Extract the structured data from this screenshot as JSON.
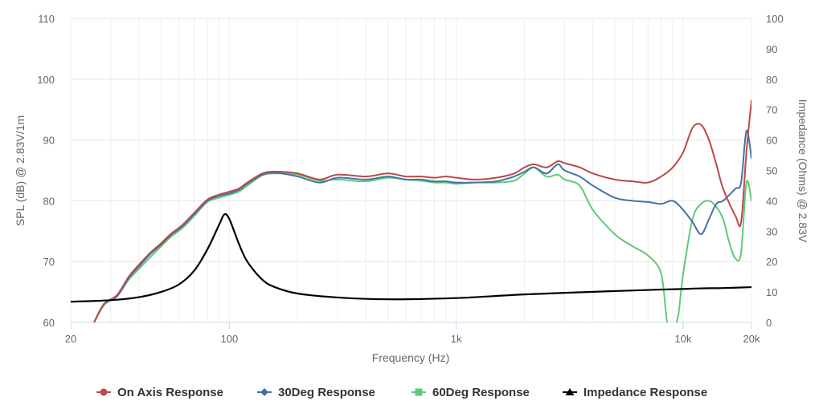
{
  "chart_data": {
    "type": "line",
    "xlabel": "Frequency (Hz)",
    "ylabel": "SPL (dB) @ 2.83V/1m",
    "y2label": "Impedance (Ohms) @ 2.83V",
    "x_scale": "log",
    "xlim": [
      20,
      20000
    ],
    "ylim": [
      60,
      110
    ],
    "y2lim": [
      0,
      100
    ],
    "x_ticks": [
      20,
      100,
      1000,
      10000,
      20000
    ],
    "x_tick_labels": [
      "20",
      "100",
      "1k",
      "10k",
      "20k"
    ],
    "y_ticks": [
      60,
      70,
      80,
      90,
      100,
      110
    ],
    "y_tick_labels": [
      "60",
      "70",
      "80",
      "90",
      "100",
      "110"
    ],
    "y2_ticks": [
      0,
      10,
      20,
      30,
      40,
      50,
      60,
      70,
      80,
      90,
      100
    ],
    "y2_tick_labels": [
      "0",
      "10",
      "20",
      "30",
      "40",
      "50",
      "60",
      "70",
      "80",
      "90",
      "100"
    ],
    "grid": true,
    "legend_position": "bottom-center",
    "series": [
      {
        "name": "On Axis Response",
        "color": "#b94a48",
        "marker": "circle",
        "axis": "left",
        "points": [
          [
            25,
            59.5
          ],
          [
            28,
            63
          ],
          [
            32,
            64.5
          ],
          [
            36,
            67.5
          ],
          [
            40,
            69.5
          ],
          [
            45,
            71.5
          ],
          [
            50,
            73
          ],
          [
            55,
            74.5
          ],
          [
            62,
            76
          ],
          [
            70,
            78
          ],
          [
            80,
            80.2
          ],
          [
            90,
            81
          ],
          [
            100,
            81.5
          ],
          [
            110,
            82
          ],
          [
            120,
            83
          ],
          [
            140,
            84.5
          ],
          [
            160,
            84.8
          ],
          [
            200,
            84.5
          ],
          [
            250,
            83.5
          ],
          [
            300,
            84.3
          ],
          [
            400,
            84
          ],
          [
            500,
            84.5
          ],
          [
            600,
            84
          ],
          [
            700,
            84
          ],
          [
            800,
            83.8
          ],
          [
            900,
            84
          ],
          [
            1000,
            83.8
          ],
          [
            1200,
            83.5
          ],
          [
            1500,
            83.8
          ],
          [
            1800,
            84.5
          ],
          [
            2000,
            85.5
          ],
          [
            2200,
            86
          ],
          [
            2500,
            85.5
          ],
          [
            2800,
            86.5
          ],
          [
            3000,
            86.2
          ],
          [
            3500,
            85.5
          ],
          [
            4000,
            84.5
          ],
          [
            5000,
            83.5
          ],
          [
            6000,
            83.2
          ],
          [
            7000,
            83
          ],
          [
            8000,
            84
          ],
          [
            9000,
            85.5
          ],
          [
            10000,
            88
          ],
          [
            11000,
            92
          ],
          [
            12000,
            92.5
          ],
          [
            13000,
            90
          ],
          [
            14000,
            86
          ],
          [
            15000,
            82
          ],
          [
            17000,
            77.5
          ],
          [
            18000,
            76.5
          ],
          [
            19000,
            88
          ],
          [
            20000,
            96.5
          ]
        ]
      },
      {
        "name": "30Deg Response",
        "color": "#4572a7",
        "marker": "diamond",
        "axis": "left",
        "points": [
          [
            25,
            59.5
          ],
          [
            28,
            63
          ],
          [
            32,
            64.3
          ],
          [
            36,
            67.3
          ],
          [
            40,
            69.2
          ],
          [
            45,
            71.3
          ],
          [
            50,
            72.8
          ],
          [
            55,
            74.3
          ],
          [
            62,
            75.8
          ],
          [
            70,
            77.8
          ],
          [
            80,
            80
          ],
          [
            90,
            80.8
          ],
          [
            100,
            81.2
          ],
          [
            110,
            81.8
          ],
          [
            120,
            82.8
          ],
          [
            140,
            84.3
          ],
          [
            160,
            84.6
          ],
          [
            200,
            84
          ],
          [
            250,
            83
          ],
          [
            300,
            83.8
          ],
          [
            400,
            83.5
          ],
          [
            500,
            84
          ],
          [
            600,
            83.5
          ],
          [
            700,
            83.5
          ],
          [
            800,
            83.2
          ],
          [
            900,
            83.2
          ],
          [
            1000,
            83
          ],
          [
            1200,
            83
          ],
          [
            1500,
            83.2
          ],
          [
            1800,
            84
          ],
          [
            2000,
            84.8
          ],
          [
            2200,
            85.5
          ],
          [
            2500,
            84.5
          ],
          [
            2800,
            86
          ],
          [
            3000,
            85
          ],
          [
            3500,
            84
          ],
          [
            4000,
            82.5
          ],
          [
            5000,
            80.5
          ],
          [
            6000,
            80
          ],
          [
            7000,
            79.8
          ],
          [
            8000,
            79.5
          ],
          [
            9000,
            80
          ],
          [
            10000,
            78.5
          ],
          [
            11000,
            76.5
          ],
          [
            12000,
            74.5
          ],
          [
            13000,
            77
          ],
          [
            14000,
            79.5
          ],
          [
            15000,
            80
          ],
          [
            17000,
            82
          ],
          [
            18000,
            83
          ],
          [
            19000,
            91.5
          ],
          [
            20000,
            87
          ]
        ]
      },
      {
        "name": "60Deg Response",
        "color": "#5fc97a",
        "marker": "square",
        "axis": "left",
        "points": [
          [
            25,
            59.5
          ],
          [
            28,
            62.8
          ],
          [
            32,
            64.3
          ],
          [
            36,
            67
          ],
          [
            40,
            68.8
          ],
          [
            45,
            70.8
          ],
          [
            50,
            72.5
          ],
          [
            55,
            74
          ],
          [
            62,
            75.5
          ],
          [
            70,
            77.5
          ],
          [
            80,
            79.8
          ],
          [
            90,
            80.5
          ],
          [
            100,
            81
          ],
          [
            110,
            81.5
          ],
          [
            120,
            82.5
          ],
          [
            140,
            84.2
          ],
          [
            160,
            84.5
          ],
          [
            200,
            84.3
          ],
          [
            250,
            83.3
          ],
          [
            300,
            83.5
          ],
          [
            400,
            83.2
          ],
          [
            500,
            83.8
          ],
          [
            600,
            83.5
          ],
          [
            700,
            83.3
          ],
          [
            800,
            83
          ],
          [
            900,
            83
          ],
          [
            1000,
            82.8
          ],
          [
            1200,
            83
          ],
          [
            1500,
            83
          ],
          [
            1800,
            83.3
          ],
          [
            2000,
            84.5
          ],
          [
            2200,
            85.5
          ],
          [
            2500,
            84
          ],
          [
            2800,
            84.3
          ],
          [
            3000,
            83.5
          ],
          [
            3500,
            82.5
          ],
          [
            4000,
            78.5
          ],
          [
            5000,
            74.5
          ],
          [
            6000,
            72.5
          ],
          [
            7000,
            71
          ],
          [
            8000,
            68
          ],
          [
            8500,
            60
          ],
          [
            9000,
            59
          ],
          [
            9500,
            61
          ],
          [
            10000,
            68
          ],
          [
            11000,
            77
          ],
          [
            12000,
            79.5
          ],
          [
            13000,
            80
          ],
          [
            14000,
            79
          ],
          [
            15000,
            77
          ],
          [
            16000,
            73
          ],
          [
            17000,
            70.5
          ],
          [
            18000,
            71.5
          ],
          [
            19000,
            83
          ],
          [
            20000,
            80
          ]
        ]
      },
      {
        "name": "Impedance Response",
        "color": "#000000",
        "marker": "triangle",
        "axis": "right",
        "points": [
          [
            20,
            6.8
          ],
          [
            30,
            7.3
          ],
          [
            40,
            8.3
          ],
          [
            50,
            10
          ],
          [
            60,
            12.5
          ],
          [
            70,
            17
          ],
          [
            80,
            24
          ],
          [
            90,
            32
          ],
          [
            95,
            35.5
          ],
          [
            100,
            34
          ],
          [
            110,
            26
          ],
          [
            120,
            20
          ],
          [
            140,
            14
          ],
          [
            160,
            11.5
          ],
          [
            200,
            9.5
          ],
          [
            300,
            8.2
          ],
          [
            500,
            7.6
          ],
          [
            1000,
            8
          ],
          [
            2000,
            9.2
          ],
          [
            5000,
            10.3
          ],
          [
            8000,
            10.8
          ],
          [
            10000,
            11
          ],
          [
            12000,
            11.2
          ],
          [
            15000,
            11.3
          ],
          [
            20000,
            11.6
          ]
        ]
      }
    ]
  }
}
